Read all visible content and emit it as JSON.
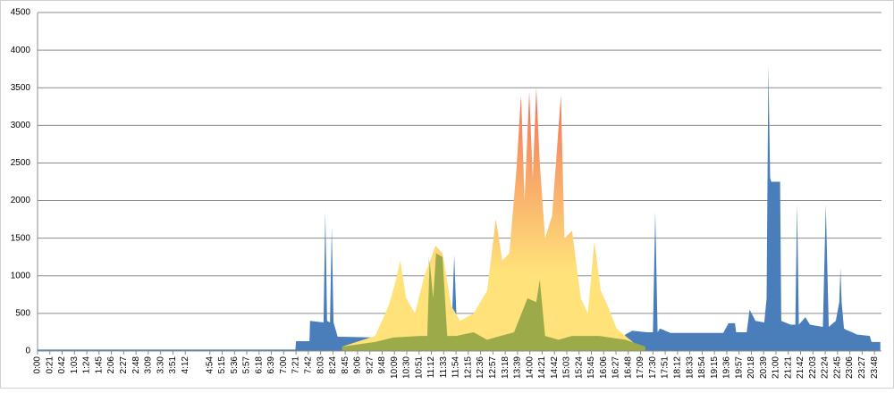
{
  "chart_data": {
    "type": "area",
    "xlim": [
      0,
      1440
    ],
    "xticks": [
      {
        "value": 0,
        "label": "0:00"
      },
      {
        "value": 21,
        "label": "0:21"
      },
      {
        "value": 42,
        "label": "0:42"
      },
      {
        "value": 63,
        "label": "1:03"
      },
      {
        "value": 84,
        "label": "1:24"
      },
      {
        "value": 105,
        "label": "1:45"
      },
      {
        "value": 126,
        "label": "2:06"
      },
      {
        "value": 147,
        "label": "2:27"
      },
      {
        "value": 168,
        "label": "2:48"
      },
      {
        "value": 189,
        "label": "3:09"
      },
      {
        "value": 210,
        "label": "3:30"
      },
      {
        "value": 231,
        "label": "3:51"
      },
      {
        "value": 252,
        "label": "4:12"
      },
      {
        "value": 294,
        "label": "4:54"
      },
      {
        "value": 315,
        "label": "5:15"
      },
      {
        "value": 336,
        "label": "5:36"
      },
      {
        "value": 357,
        "label": "5:57"
      },
      {
        "value": 378,
        "label": "6:18"
      },
      {
        "value": 399,
        "label": "6:39"
      },
      {
        "value": 420,
        "label": "7:00"
      },
      {
        "value": 441,
        "label": "7:21"
      },
      {
        "value": 462,
        "label": "7:42"
      },
      {
        "value": 483,
        "label": "8:03"
      },
      {
        "value": 504,
        "label": "8:24"
      },
      {
        "value": 525,
        "label": "8:45"
      },
      {
        "value": 546,
        "label": "9:06"
      },
      {
        "value": 567,
        "label": "9:27"
      },
      {
        "value": 588,
        "label": "9:48"
      },
      {
        "value": 609,
        "label": "10:09"
      },
      {
        "value": 630,
        "label": "10:30"
      },
      {
        "value": 651,
        "label": "10:51"
      },
      {
        "value": 672,
        "label": "11:12"
      },
      {
        "value": 693,
        "label": "11:33"
      },
      {
        "value": 714,
        "label": "11:54"
      },
      {
        "value": 735,
        "label": "12:15"
      },
      {
        "value": 756,
        "label": "12:36"
      },
      {
        "value": 777,
        "label": "12:57"
      },
      {
        "value": 798,
        "label": "13:18"
      },
      {
        "value": 819,
        "label": "13:39"
      },
      {
        "value": 840,
        "label": "14:00"
      },
      {
        "value": 861,
        "label": "14:21"
      },
      {
        "value": 882,
        "label": "14:42"
      },
      {
        "value": 903,
        "label": "15:03"
      },
      {
        "value": 924,
        "label": "15:24"
      },
      {
        "value": 945,
        "label": "15:45"
      },
      {
        "value": 966,
        "label": "16:06"
      },
      {
        "value": 987,
        "label": "16:27"
      },
      {
        "value": 1008,
        "label": "16:48"
      },
      {
        "value": 1029,
        "label": "17:09"
      },
      {
        "value": 1050,
        "label": "17:30"
      },
      {
        "value": 1071,
        "label": "17:51"
      },
      {
        "value": 1092,
        "label": "18:12"
      },
      {
        "value": 1113,
        "label": "18:33"
      },
      {
        "value": 1134,
        "label": "18:54"
      },
      {
        "value": 1155,
        "label": "19:15"
      },
      {
        "value": 1176,
        "label": "19:36"
      },
      {
        "value": 1197,
        "label": "19:57"
      },
      {
        "value": 1218,
        "label": "20:18"
      },
      {
        "value": 1239,
        "label": "20:39"
      },
      {
        "value": 1260,
        "label": "21:00"
      },
      {
        "value": 1281,
        "label": "21:21"
      },
      {
        "value": 1302,
        "label": "21:42"
      },
      {
        "value": 1323,
        "label": "22:03"
      },
      {
        "value": 1344,
        "label": "22:24"
      },
      {
        "value": 1365,
        "label": "22:45"
      },
      {
        "value": 1386,
        "label": "23:06"
      },
      {
        "value": 1407,
        "label": "23:27"
      },
      {
        "value": 1428,
        "label": "23:48"
      }
    ],
    "ylim": [
      0,
      4500
    ],
    "yticks": [
      0,
      500,
      1000,
      1500,
      2000,
      2500,
      3000,
      3500,
      4000,
      4500
    ],
    "grid": true,
    "series": [
      {
        "color": "#4a7ebb",
        "x": [
          0,
          440,
          441,
          464,
          465,
          488,
          491,
          494,
          499,
          502,
          505,
          510,
          512,
          580,
          640,
          665,
          668,
          671,
          675,
          706,
          711,
          716,
          720,
          1000,
          1003,
          1015,
          1040,
          1050,
          1054,
          1058,
          1062,
          1080,
          1170,
          1179,
          1190,
          1192,
          1210,
          1215,
          1225,
          1240,
          1244,
          1247,
          1250,
          1252,
          1267,
          1269,
          1285,
          1293,
          1296,
          1299,
          1310,
          1318,
          1340,
          1345,
          1350,
          1362,
          1368,
          1370,
          1372,
          1376,
          1380,
          1390,
          1398,
          1420,
          1423,
          1438
        ],
        "values": [
          20,
          20,
          130,
          130,
          400,
          380,
          1850,
          400,
          380,
          1650,
          380,
          250,
          190,
          180,
          170,
          170,
          1270,
          170,
          170,
          170,
          1280,
          170,
          170,
          170,
          220,
          270,
          250,
          250,
          1850,
          250,
          300,
          240,
          240,
          370,
          370,
          250,
          250,
          550,
          400,
          380,
          700,
          3800,
          2300,
          2250,
          2250,
          400,
          350,
          350,
          1950,
          350,
          450,
          350,
          320,
          1950,
          320,
          400,
          650,
          1100,
          650,
          300,
          280,
          250,
          220,
          200,
          120,
          120
        ]
      },
      {
        "color": "#ffe27a",
        "gradient_top": "#f2705a",
        "x": [
          520,
          576,
          599,
          610,
          619,
          629,
          644,
          660,
          670,
          679,
          691,
          706,
          721,
          744,
          767,
          782,
          793,
          805,
          817,
          825,
          831,
          839,
          845,
          851,
          857,
          866,
          878,
          893,
          899,
          912,
          927,
          939,
          950,
          961,
          973,
          988,
          1003,
          1019,
          1037
        ],
        "values": [
          60,
          200,
          600,
          900,
          1200,
          700,
          500,
          1000,
          1200,
          1400,
          1300,
          600,
          400,
          500,
          800,
          1750,
          1200,
          1300,
          2400,
          3400,
          2000,
          3450,
          2300,
          3500,
          2500,
          1500,
          1800,
          3400,
          1500,
          1600,
          700,
          500,
          1450,
          800,
          600,
          300,
          200,
          100,
          0
        ]
      },
      {
        "color": "#9caa4a",
        "x": [
          520,
          576,
          607,
          653,
          665,
          669,
          675,
          680,
          691,
          699,
          714,
          744,
          767,
          790,
          813,
          836,
          851,
          857,
          866,
          889,
          912,
          958,
          1003,
          1037
        ],
        "values": [
          60,
          120,
          180,
          200,
          200,
          1200,
          700,
          1300,
          1250,
          200,
          200,
          250,
          150,
          200,
          250,
          700,
          650,
          950,
          200,
          150,
          200,
          200,
          150,
          60
        ]
      }
    ]
  }
}
